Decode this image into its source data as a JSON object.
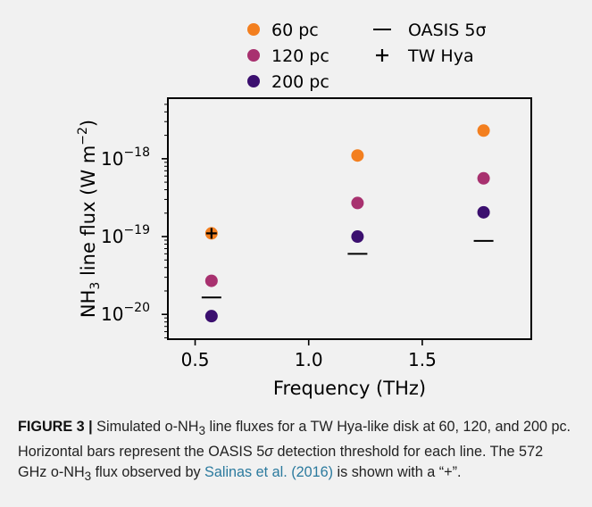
{
  "chart_data": {
    "type": "scatter",
    "x": [
      0.572,
      1.215,
      1.77
    ],
    "series": [
      {
        "name": "60 pc",
        "color": "#f37f1f",
        "values": [
          1.1e-19,
          1.1e-18,
          2.3e-18
        ]
      },
      {
        "name": "120 pc",
        "color": "#a8316f",
        "values": [
          2.7e-20,
          2.7e-19,
          5.6e-19
        ]
      },
      {
        "name": "200 pc",
        "color": "#3b0f6f",
        "values": [
          9.5e-21,
          1e-19,
          2.05e-19
        ]
      }
    ],
    "thresholds": {
      "name": "OASIS 5σ",
      "values": [
        1.65e-20,
        6e-20,
        8.8e-20
      ]
    },
    "observed": {
      "name": "TW Hya",
      "x": 0.572,
      "value": 1.1e-19
    },
    "xlabel": "Frequency (THz)",
    "ylabel_main": "NH",
    "ylabel_sub": "3",
    "ylabel_rest": " line flux (W m",
    "ylabel_sup": "−2",
    "ylabel_end": ")",
    "xlim": [
      0.38,
      1.98
    ],
    "ylim": [
      4.8e-21,
      6e-18
    ],
    "yscale": "log",
    "xticks": [
      {
        "value": 0.5,
        "label": "0.5"
      },
      {
        "value": 1.0,
        "label": "1.0"
      },
      {
        "value": 1.5,
        "label": "1.5"
      }
    ],
    "yticks": [
      {
        "exp": -18,
        "base": "10",
        "sup": "−18"
      },
      {
        "exp": -19,
        "base": "10",
        "sup": "−19"
      },
      {
        "exp": -20,
        "base": "10",
        "sup": "−20"
      }
    ],
    "grid": false,
    "legend_position": "top"
  },
  "caption": {
    "label": "FIGURE 3 |",
    "t1": " Simulated o-NH",
    "sub1": "3",
    "t2": " line fluxes for a TW Hya-like disk at 60, 120, and 200 pc. Horizontal bars represent the OASIS 5",
    "sigma": "σ",
    "t3": " detection threshold for each line. The 572 GHz o-NH",
    "sub2": "3",
    "t4": " flux observed by ",
    "cite": "Salinas et al. (2016)",
    "t5": " is shown with a “+”."
  }
}
